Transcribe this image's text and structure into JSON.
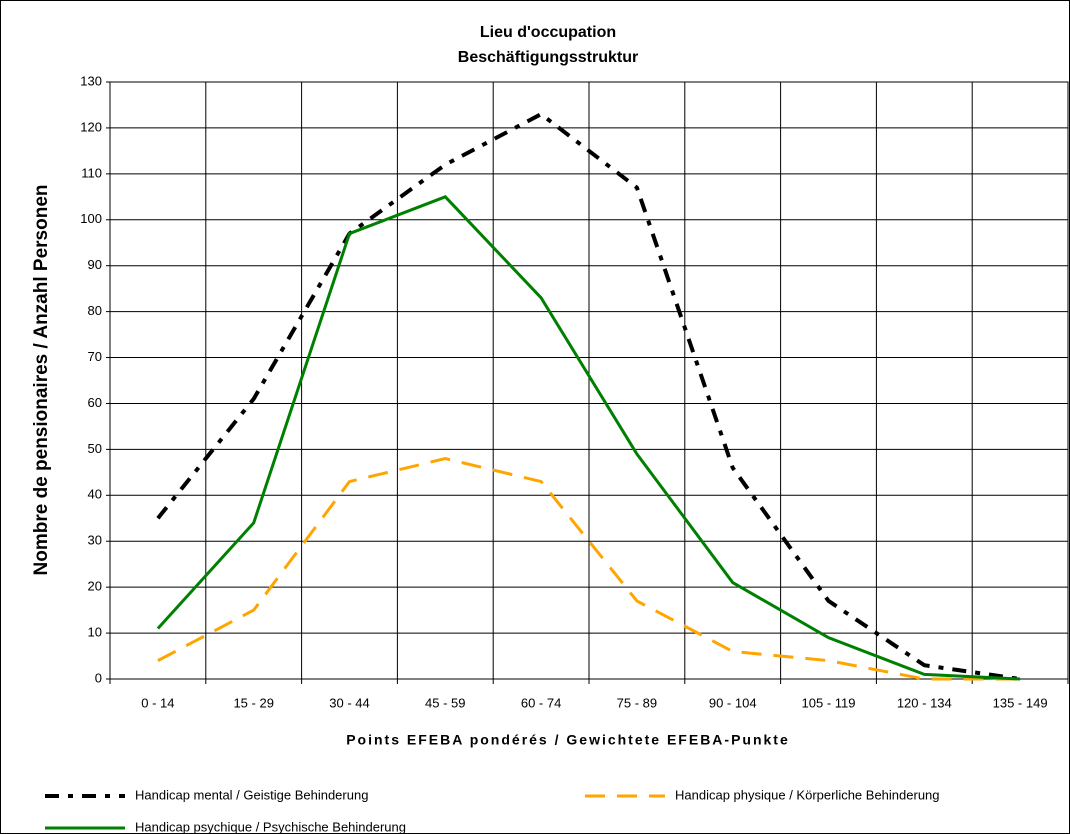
{
  "chart_data": {
    "type": "line",
    "title": [
      "Lieu d'occupation",
      "Beschäftigungsstruktur"
    ],
    "x_label": "Points EFEBA pondérés / Gewichtete EFEBA-Punkte",
    "y_label": "Nombre de pensionaires / Anzahl Personen",
    "categories": [
      "0 - 14",
      "15 - 29",
      "30 - 44",
      "45 - 59",
      "60 - 74",
      "75 - 89",
      "90 - 104",
      "105 - 119",
      "120 - 134",
      "135 - 149"
    ],
    "series": [
      {
        "name": "Handicap mental / Geistige Behinderung",
        "color": "#000000",
        "style": "dashdot",
        "values": [
          35,
          61,
          97,
          112,
          123,
          107,
          46,
          17,
          3,
          0
        ]
      },
      {
        "name": "Handicap physique / Körperliche Behinderung",
        "color": "#ffa500",
        "style": "dashed",
        "values": [
          4,
          15,
          43,
          48,
          43,
          17,
          6,
          4,
          0,
          0
        ]
      },
      {
        "name": "Handicap psychique / Psychische Behinderung",
        "color": "#008000",
        "style": "solid",
        "values": [
          11,
          34,
          97,
          105,
          83,
          49,
          21,
          9,
          1,
          0
        ]
      }
    ],
    "ylim": [
      0,
      130
    ],
    "yticks": [
      0,
      10,
      20,
      30,
      40,
      50,
      60,
      70,
      80,
      90,
      100,
      110,
      120,
      130
    ],
    "grid": true
  }
}
